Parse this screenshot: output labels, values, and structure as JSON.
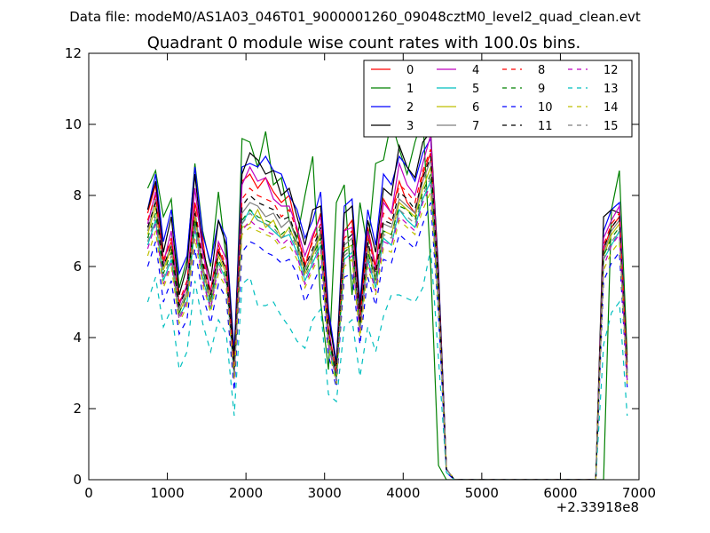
{
  "suptitle": "Data file: modeM0/AS1A03_046T01_9000001260_09048cztM0_level2_quad_clean.evt",
  "chart_data": {
    "type": "line",
    "title": "Quadrant 0 module wise count rates with 100.0s bins.",
    "xlabel": "",
    "ylabel": "",
    "x_offset_label": "+2.33918e8",
    "xlim": [
      0,
      7000
    ],
    "ylim": [
      0,
      12
    ],
    "x_ticks": [
      0,
      1000,
      2000,
      3000,
      4000,
      5000,
      6000,
      7000
    ],
    "y_ticks": [
      0,
      2,
      4,
      6,
      8,
      10,
      12
    ],
    "grid": false,
    "legend_position": "top-right",
    "legend_columns": 4,
    "x": [
      750,
      850,
      950,
      1050,
      1150,
      1250,
      1350,
      1450,
      1550,
      1650,
      1750,
      1850,
      1950,
      2050,
      2150,
      2250,
      2350,
      2450,
      2550,
      2650,
      2750,
      2850,
      2950,
      3050,
      3150,
      3250,
      3350,
      3450,
      3550,
      3650,
      3750,
      3850,
      3950,
      4050,
      4150,
      4250,
      4350,
      4450,
      4550,
      4650,
      4750,
      4850,
      4950,
      5050,
      5150,
      5250,
      5350,
      5450,
      5550,
      5650,
      5750,
      5850,
      5950,
      6050,
      6150,
      6250,
      6350,
      6450,
      6550,
      6650,
      6750,
      6850
    ],
    "series": [
      {
        "name": "0",
        "color": "#ff0000",
        "dash": "solid",
        "values": [
          7.5,
          8.3,
          6.2,
          6.7,
          5.0,
          5.4,
          7.8,
          6.8,
          5.0,
          6.5,
          5.9,
          3.2,
          8.4,
          8.6,
          8.2,
          8.5,
          8.1,
          7.8,
          8.0,
          7.0,
          6.0,
          6.8,
          7.5,
          4.2,
          3.0,
          7.0,
          7.3,
          4.6,
          7.1,
          6.0,
          7.9,
          7.5,
          8.4,
          7.8,
          7.5,
          8.6,
          9.2,
          5.6,
          0.3,
          0,
          0,
          0,
          0,
          0,
          0,
          0,
          0,
          0,
          0,
          0,
          0,
          0,
          0,
          0,
          0,
          0,
          0,
          0,
          6.5,
          7.1,
          7.4,
          2.9
        ]
      },
      {
        "name": "1",
        "color": "#008000",
        "dash": "solid",
        "values": [
          8.2,
          8.7,
          7.4,
          7.9,
          5.4,
          6.2,
          8.9,
          7.0,
          6.0,
          8.1,
          6.2,
          3.1,
          9.6,
          9.5,
          8.8,
          9.8,
          8.3,
          8.5,
          7.3,
          6.8,
          8.0,
          9.1,
          5.0,
          3.1,
          7.8,
          8.3,
          5.2,
          7.8,
          6.5,
          8.9,
          9.0,
          10.1,
          9.3,
          8.6,
          9.5,
          10.2,
          6.0,
          0.4,
          0,
          0,
          0,
          0,
          0,
          0,
          0,
          0,
          0,
          0,
          0,
          0,
          0,
          0,
          0,
          0,
          0,
          0,
          0,
          0,
          0,
          7.6,
          8.7,
          3.5
        ]
      },
      {
        "name": "2",
        "color": "#0000ff",
        "dash": "solid",
        "values": [
          7.6,
          8.6,
          6.7,
          7.6,
          5.8,
          6.3,
          8.8,
          6.9,
          6.1,
          7.3,
          6.8,
          3.6,
          8.8,
          8.9,
          8.8,
          9.1,
          8.7,
          8.6,
          8.0,
          7.6,
          6.8,
          7.3,
          8.1,
          4.8,
          3.3,
          7.7,
          7.9,
          5.0,
          7.6,
          6.6,
          8.6,
          8.3,
          9.1,
          8.8,
          8.4,
          9.2,
          9.6,
          5.9,
          0.3,
          0,
          0,
          0,
          0,
          0,
          0,
          0,
          0,
          0,
          0,
          0,
          0,
          0,
          0,
          0,
          0,
          0,
          0,
          0,
          7.0,
          7.6,
          7.8,
          3.1
        ]
      },
      {
        "name": "3",
        "color": "#000000",
        "dash": "solid",
        "values": [
          7.6,
          8.4,
          6.4,
          7.4,
          5.2,
          6.0,
          8.6,
          6.5,
          5.6,
          7.3,
          6.6,
          3.4,
          8.6,
          9.2,
          9.0,
          8.6,
          8.7,
          8.0,
          8.2,
          7.4,
          6.6,
          7.6,
          7.7,
          4.6,
          3.2,
          7.5,
          7.7,
          4.8,
          7.3,
          6.4,
          8.2,
          8.0,
          9.4,
          8.8,
          8.5,
          9.5,
          9.8,
          5.8,
          0.3,
          0,
          0,
          0,
          0,
          0,
          0,
          0,
          0,
          0,
          0,
          0,
          0,
          0,
          0,
          0,
          0,
          0,
          0,
          0,
          7.4,
          7.6,
          7.5,
          3.3
        ]
      },
      {
        "name": "4",
        "color": "#bf00bf",
        "dash": "solid",
        "values": [
          7.2,
          8.1,
          6.1,
          7.0,
          4.9,
          5.5,
          8.2,
          6.4,
          5.3,
          6.7,
          6.2,
          3.0,
          8.3,
          8.8,
          8.4,
          8.5,
          7.9,
          7.7,
          7.7,
          7.1,
          6.3,
          6.9,
          7.4,
          4.3,
          2.9,
          7.0,
          7.1,
          4.5,
          7.0,
          5.9,
          7.8,
          7.5,
          8.9,
          8.3,
          8.0,
          8.9,
          9.7,
          5.5,
          0.3,
          0,
          0,
          0,
          0,
          0,
          0,
          0,
          0,
          0,
          0,
          0,
          0,
          0,
          0,
          0,
          0,
          0,
          0,
          0,
          6.8,
          7.3,
          7.7,
          3.0
        ]
      },
      {
        "name": "5",
        "color": "#00bfbf",
        "dash": "solid",
        "values": [
          6.6,
          7.3,
          5.6,
          6.2,
          4.6,
          5.0,
          7.1,
          5.7,
          4.8,
          6.1,
          5.6,
          2.9,
          7.2,
          7.6,
          7.3,
          7.2,
          7.0,
          6.8,
          6.9,
          6.4,
          5.6,
          6.1,
          6.6,
          3.8,
          2.8,
          6.2,
          6.4,
          4.2,
          6.2,
          5.4,
          6.8,
          6.6,
          7.6,
          7.3,
          7.1,
          7.9,
          8.4,
          5.0,
          0.3,
          0,
          0,
          0,
          0,
          0,
          0,
          0,
          0,
          0,
          0,
          0,
          0,
          0,
          0,
          0,
          0,
          0,
          0,
          0,
          6.2,
          6.6,
          7.0,
          2.8
        ]
      },
      {
        "name": "6",
        "color": "#bfbf00",
        "dash": "solid",
        "values": [
          6.9,
          7.7,
          5.9,
          6.5,
          4.7,
          5.2,
          7.4,
          5.9,
          5.0,
          6.3,
          5.8,
          3.0,
          7.1,
          7.2,
          7.6,
          7.1,
          7.3,
          6.8,
          7.1,
          6.6,
          5.8,
          6.3,
          6.9,
          4.0,
          2.9,
          6.5,
          6.6,
          4.3,
          6.5,
          5.6,
          7.0,
          6.9,
          7.8,
          7.6,
          7.4,
          8.2,
          8.8,
          5.2,
          0.3,
          0,
          0,
          0,
          0,
          0,
          0,
          0,
          0,
          0,
          0,
          0,
          0,
          0,
          0,
          0,
          0,
          0,
          0,
          0,
          6.3,
          6.9,
          7.2,
          2.9
        ]
      },
      {
        "name": "7",
        "color": "#7f7f7f",
        "dash": "solid",
        "values": [
          7.0,
          7.9,
          6.0,
          6.6,
          4.8,
          5.3,
          7.6,
          6.0,
          5.1,
          6.4,
          5.9,
          3.1,
          7.5,
          7.8,
          7.7,
          7.4,
          7.5,
          7.1,
          7.3,
          6.7,
          5.9,
          6.4,
          7.0,
          4.1,
          2.9,
          6.6,
          6.8,
          4.4,
          6.6,
          5.7,
          7.2,
          7.1,
          7.9,
          7.7,
          7.5,
          8.4,
          9.0,
          5.3,
          0.3,
          0,
          0,
          0,
          0,
          0,
          0,
          0,
          0,
          0,
          0,
          0,
          0,
          0,
          0,
          0,
          0,
          0,
          0,
          0,
          6.4,
          7.0,
          7.3,
          3.0
        ]
      },
      {
        "name": "8",
        "color": "#ff0000",
        "dash": "dashed",
        "values": [
          7.3,
          8.0,
          6.1,
          6.8,
          5.0,
          5.6,
          7.7,
          6.2,
          5.3,
          6.6,
          6.0,
          3.1,
          7.9,
          8.2,
          8.0,
          7.9,
          7.8,
          7.4,
          7.6,
          7.0,
          6.1,
          6.7,
          7.2,
          4.2,
          3.0,
          6.8,
          7.0,
          4.5,
          6.9,
          5.9,
          7.5,
          7.3,
          8.3,
          8.1,
          7.8,
          8.7,
          9.3,
          5.5,
          0.3,
          0,
          0,
          0,
          0,
          0,
          0,
          0,
          0,
          0,
          0,
          0,
          0,
          0,
          0,
          0,
          0,
          0,
          0,
          0,
          6.6,
          7.2,
          7.5,
          3.1
        ]
      },
      {
        "name": "9",
        "color": "#008000",
        "dash": "dashed",
        "values": [
          6.8,
          7.5,
          5.8,
          6.4,
          4.7,
          5.2,
          7.3,
          5.9,
          5.0,
          6.2,
          5.7,
          3.0,
          7.3,
          7.6,
          7.4,
          7.3,
          7.2,
          6.9,
          7.1,
          6.6,
          5.8,
          6.3,
          6.8,
          4.0,
          2.9,
          6.4,
          6.6,
          4.3,
          6.4,
          5.6,
          7.0,
          6.9,
          7.7,
          7.6,
          7.3,
          8.1,
          8.6,
          5.1,
          0.3,
          0,
          0,
          0,
          0,
          0,
          0,
          0,
          0,
          0,
          0,
          0,
          0,
          0,
          0,
          0,
          0,
          0,
          0,
          0,
          6.3,
          6.8,
          7.1,
          2.9
        ]
      },
      {
        "name": "10",
        "color": "#0000ff",
        "dash": "dashed",
        "values": [
          6.0,
          6.7,
          5.0,
          5.6,
          4.1,
          4.5,
          6.5,
          5.2,
          4.4,
          5.5,
          5.1,
          2.5,
          6.4,
          6.7,
          6.6,
          6.4,
          6.3,
          6.1,
          6.2,
          5.8,
          5.0,
          5.5,
          6.0,
          3.5,
          2.6,
          5.7,
          5.8,
          3.8,
          5.7,
          4.9,
          6.2,
          6.1,
          6.9,
          6.7,
          6.5,
          7.2,
          7.8,
          4.6,
          0.2,
          0,
          0,
          0,
          0,
          0,
          0,
          0,
          0,
          0,
          0,
          0,
          0,
          0,
          0,
          0,
          0,
          0,
          0,
          0,
          5.6,
          6.1,
          6.4,
          2.6
        ]
      },
      {
        "name": "11",
        "color": "#000000",
        "dash": "dashed",
        "values": [
          7.1,
          7.8,
          6.0,
          6.6,
          4.9,
          5.4,
          7.5,
          6.1,
          5.2,
          6.4,
          5.9,
          3.1,
          7.7,
          8.0,
          7.8,
          7.7,
          7.6,
          7.3,
          7.4,
          6.8,
          6.0,
          6.5,
          7.1,
          4.1,
          3.0,
          6.7,
          6.9,
          4.4,
          6.7,
          5.8,
          7.3,
          7.2,
          8.1,
          7.9,
          7.6,
          8.5,
          9.1,
          5.4,
          0.3,
          0,
          0,
          0,
          0,
          0,
          0,
          0,
          0,
          0,
          0,
          0,
          0,
          0,
          0,
          0,
          0,
          0,
          0,
          0,
          6.5,
          7.1,
          7.4,
          3.0
        ]
      },
      {
        "name": "12",
        "color": "#bf00bf",
        "dash": "dashed",
        "values": [
          6.5,
          7.2,
          5.5,
          6.1,
          4.5,
          5.0,
          7.0,
          5.6,
          4.8,
          6.0,
          5.5,
          2.8,
          7.0,
          7.3,
          7.1,
          7.0,
          6.9,
          6.6,
          6.8,
          6.3,
          5.5,
          6.0,
          6.5,
          3.8,
          2.8,
          6.1,
          6.3,
          4.1,
          6.1,
          5.3,
          6.7,
          6.6,
          7.4,
          7.2,
          7.0,
          7.8,
          8.3,
          4.9,
          0.3,
          0,
          0,
          0,
          0,
          0,
          0,
          0,
          0,
          0,
          0,
          0,
          0,
          0,
          0,
          0,
          0,
          0,
          0,
          0,
          6.0,
          6.6,
          6.9,
          2.8
        ]
      },
      {
        "name": "13",
        "color": "#00bfbf",
        "dash": "dashed",
        "values": [
          5.0,
          5.7,
          4.3,
          4.8,
          3.1,
          3.6,
          5.6,
          4.4,
          3.6,
          4.5,
          4.1,
          1.8,
          5.5,
          5.7,
          4.9,
          4.9,
          5.0,
          4.6,
          4.3,
          3.9,
          3.7,
          4.5,
          4.8,
          2.4,
          2.2,
          4.3,
          4.5,
          2.9,
          4.3,
          3.6,
          4.6,
          5.2,
          5.2,
          5.1,
          5.0,
          5.4,
          6.5,
          3.4,
          0.2,
          0,
          0,
          0,
          0,
          0,
          0,
          0,
          0,
          0,
          0,
          0,
          0,
          0,
          0,
          0,
          0,
          0,
          0,
          0,
          3.8,
          4.7,
          5.0,
          1.8
        ]
      },
      {
        "name": "14",
        "color": "#bfbf00",
        "dash": "dashed",
        "values": [
          6.3,
          7.0,
          5.4,
          6.0,
          4.4,
          4.9,
          6.8,
          5.5,
          4.7,
          5.8,
          5.4,
          2.8,
          6.9,
          7.1,
          7.0,
          6.9,
          6.8,
          6.5,
          6.6,
          6.2,
          5.4,
          5.9,
          6.4,
          3.7,
          2.7,
          6.0,
          6.2,
          4.0,
          6.0,
          5.2,
          6.5,
          6.4,
          7.3,
          7.1,
          6.9,
          7.6,
          8.1,
          4.8,
          0.3,
          0,
          0,
          0,
          0,
          0,
          0,
          0,
          0,
          0,
          0,
          0,
          0,
          0,
          0,
          0,
          0,
          0,
          0,
          0,
          5.9,
          6.4,
          6.7,
          2.7
        ]
      },
      {
        "name": "15",
        "color": "#7f7f7f",
        "dash": "dashed",
        "values": [
          6.7,
          7.4,
          5.7,
          6.3,
          4.6,
          5.1,
          7.2,
          5.8,
          4.9,
          6.1,
          5.6,
          2.9,
          7.2,
          7.5,
          7.3,
          7.2,
          7.1,
          6.8,
          7.0,
          6.5,
          5.7,
          6.2,
          6.7,
          3.9,
          2.8,
          6.3,
          6.5,
          4.2,
          6.3,
          5.5,
          6.9,
          6.8,
          7.6,
          7.4,
          7.2,
          8.0,
          8.5,
          5.0,
          0.3,
          0,
          0,
          0,
          0,
          0,
          0,
          0,
          0,
          0,
          0,
          0,
          0,
          0,
          0,
          0,
          0,
          0,
          0,
          0,
          6.2,
          6.7,
          7.0,
          2.9
        ]
      }
    ]
  }
}
